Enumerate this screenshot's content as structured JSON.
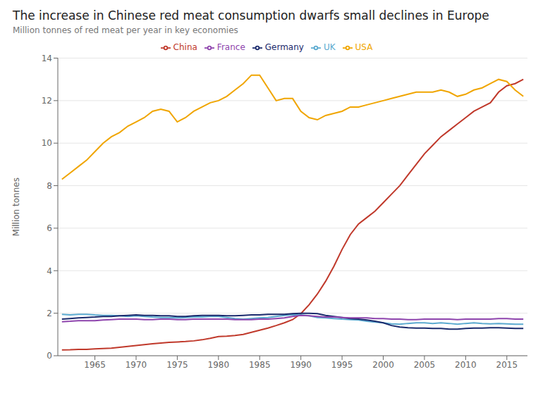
{
  "chart_data": {
    "type": "line",
    "title": "The increase in Chinese red meat consumption dwarfs small declines in Europe",
    "subtitle": "Million tonnes of red meat per year in key economies",
    "ylabel": "Million tonnes",
    "x": [
      1961,
      1962,
      1963,
      1964,
      1965,
      1966,
      1967,
      1968,
      1969,
      1970,
      1971,
      1972,
      1973,
      1974,
      1975,
      1976,
      1977,
      1978,
      1979,
      1980,
      1981,
      1982,
      1983,
      1984,
      1985,
      1986,
      1987,
      1988,
      1989,
      1990,
      1991,
      1992,
      1993,
      1994,
      1995,
      1996,
      1997,
      1998,
      1999,
      2000,
      2001,
      2002,
      2003,
      2004,
      2005,
      2006,
      2007,
      2008,
      2009,
      2010,
      2011,
      2012,
      2013,
      2014,
      2015,
      2016,
      2017
    ],
    "series": [
      {
        "name": "China",
        "color": "#c0392b",
        "values": [
          0.27,
          0.28,
          0.3,
          0.3,
          0.32,
          0.34,
          0.36,
          0.4,
          0.44,
          0.48,
          0.52,
          0.56,
          0.6,
          0.63,
          0.65,
          0.67,
          0.7,
          0.75,
          0.82,
          0.9,
          0.92,
          0.95,
          1.0,
          1.1,
          1.2,
          1.3,
          1.42,
          1.55,
          1.7,
          1.98,
          2.4,
          2.9,
          3.5,
          4.2,
          5.0,
          5.7,
          6.2,
          6.5,
          6.8,
          7.2,
          7.6,
          8.0,
          8.5,
          9.0,
          9.5,
          9.9,
          10.3,
          10.6,
          10.9,
          11.2,
          11.5,
          11.7,
          11.9,
          12.4,
          12.7,
          12.8,
          13.0
        ]
      },
      {
        "name": "USA",
        "color": "#f0a500",
        "values": [
          8.3,
          8.6,
          8.9,
          9.2,
          9.6,
          10.0,
          10.3,
          10.5,
          10.8,
          11.0,
          11.2,
          11.5,
          11.6,
          11.5,
          11.0,
          11.2,
          11.5,
          11.7,
          11.9,
          12.0,
          12.2,
          12.5,
          12.8,
          13.2,
          13.2,
          12.6,
          12.0,
          12.1,
          12.1,
          11.5,
          11.2,
          11.1,
          11.3,
          11.4,
          11.5,
          11.7,
          11.7,
          11.8,
          11.9,
          12.0,
          12.1,
          12.2,
          12.3,
          12.4,
          12.4,
          12.4,
          12.5,
          12.4,
          12.2,
          12.3,
          12.5,
          12.6,
          12.8,
          13.0,
          12.9,
          12.5,
          12.2
        ]
      },
      {
        "name": "UK",
        "color": "#5baad0",
        "values": [
          1.95,
          1.92,
          1.95,
          1.95,
          1.92,
          1.9,
          1.9,
          1.88,
          1.85,
          1.88,
          1.85,
          1.82,
          1.8,
          1.8,
          1.78,
          1.8,
          1.82,
          1.82,
          1.85,
          1.85,
          1.8,
          1.75,
          1.72,
          1.75,
          1.78,
          1.8,
          1.85,
          1.9,
          1.92,
          1.92,
          1.88,
          1.8,
          1.78,
          1.75,
          1.72,
          1.7,
          1.68,
          1.62,
          1.58,
          1.55,
          1.5,
          1.48,
          1.52,
          1.55,
          1.55,
          1.52,
          1.55,
          1.52,
          1.48,
          1.52,
          1.55,
          1.52,
          1.5,
          1.52,
          1.5,
          1.48,
          1.48
        ]
      },
      {
        "name": "Germany",
        "color": "#1a2a6c",
        "values": [
          1.72,
          1.75,
          1.78,
          1.8,
          1.82,
          1.85,
          1.85,
          1.88,
          1.9,
          1.92,
          1.9,
          1.9,
          1.88,
          1.88,
          1.85,
          1.85,
          1.88,
          1.9,
          1.9,
          1.9,
          1.88,
          1.88,
          1.9,
          1.92,
          1.92,
          1.95,
          1.95,
          1.95,
          1.98,
          2.0,
          2.0,
          1.98,
          1.9,
          1.85,
          1.8,
          1.75,
          1.72,
          1.68,
          1.62,
          1.55,
          1.42,
          1.35,
          1.32,
          1.3,
          1.3,
          1.28,
          1.28,
          1.25,
          1.25,
          1.28,
          1.3,
          1.3,
          1.32,
          1.32,
          1.3,
          1.28,
          1.28
        ]
      },
      {
        "name": "France",
        "color": "#8e44ad",
        "values": [
          1.6,
          1.62,
          1.65,
          1.65,
          1.65,
          1.68,
          1.7,
          1.72,
          1.72,
          1.72,
          1.7,
          1.7,
          1.72,
          1.72,
          1.7,
          1.7,
          1.72,
          1.72,
          1.72,
          1.72,
          1.72,
          1.7,
          1.7,
          1.7,
          1.72,
          1.72,
          1.75,
          1.78,
          1.85,
          1.9,
          1.88,
          1.85,
          1.82,
          1.82,
          1.8,
          1.78,
          1.78,
          1.78,
          1.75,
          1.75,
          1.72,
          1.72,
          1.7,
          1.7,
          1.72,
          1.72,
          1.72,
          1.72,
          1.7,
          1.72,
          1.72,
          1.72,
          1.72,
          1.75,
          1.75,
          1.72,
          1.72
        ]
      }
    ],
    "xlim": [
      1960.5,
      2017.5
    ],
    "xticks": [
      1965,
      1970,
      1975,
      1980,
      1985,
      1990,
      1995,
      2000,
      2005,
      2010,
      2015
    ],
    "ylim": [
      0,
      14
    ],
    "yticks": [
      0,
      2,
      4,
      6,
      8,
      10,
      12,
      14
    ],
    "grid": true,
    "legend": "top"
  }
}
